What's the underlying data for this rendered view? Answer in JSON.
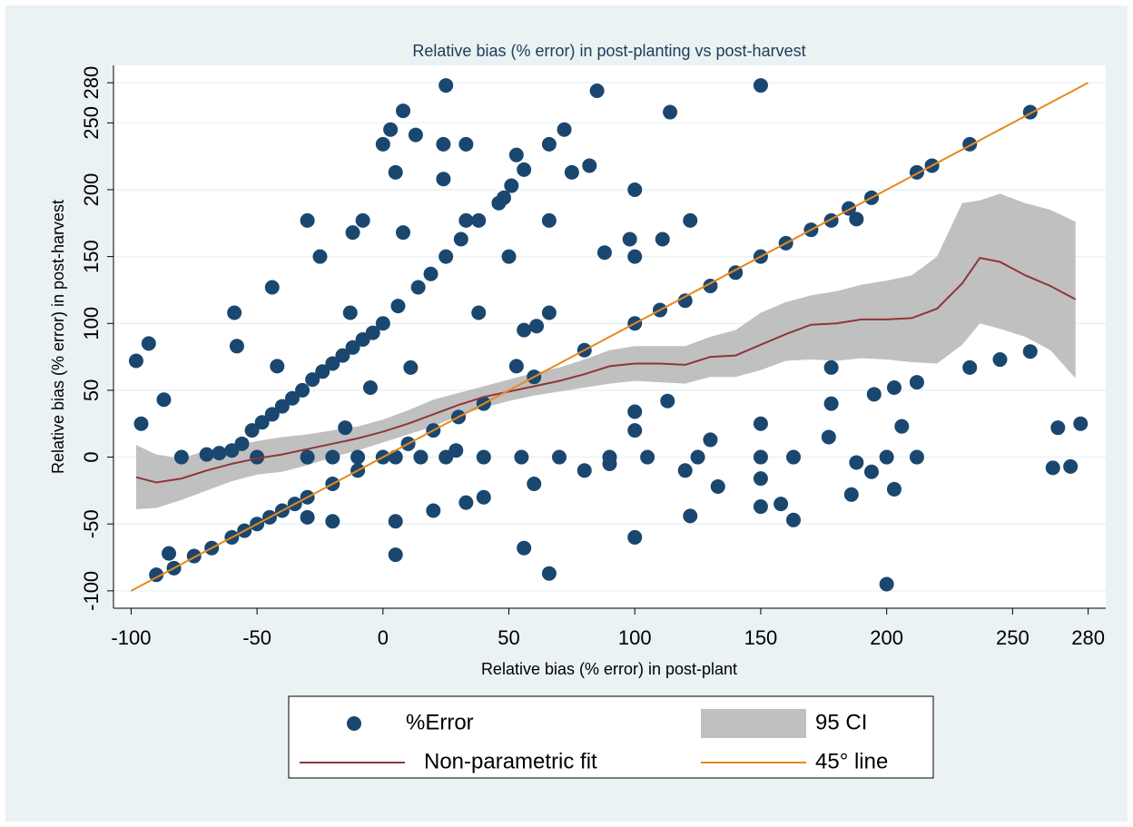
{
  "chart_data": {
    "type": "scatter",
    "title": "Relative bias (% error) in post-planting vs post-harvest",
    "x_label": "Relative bias (% error) in post-plant",
    "y_label": "Relative bias (% error) in post-harvest",
    "xlim": [
      -107,
      287
    ],
    "ylim": [
      -113,
      293
    ],
    "xticks": [
      -100,
      -50,
      0,
      50,
      100,
      150,
      200,
      250,
      280
    ],
    "yticks": [
      -100,
      -50,
      0,
      50,
      100,
      150,
      200,
      250,
      280
    ],
    "grid": true,
    "legend": "bottom",
    "series": [
      {
        "name": "%Error",
        "kind": "scatter",
        "color": "#1a476f",
        "x": [
          25,
          85,
          150,
          8,
          114,
          257,
          3,
          13,
          72,
          0,
          24,
          33,
          66,
          233,
          5,
          24,
          56,
          75,
          82,
          53,
          100,
          51,
          194,
          48,
          46,
          -30,
          -8,
          33,
          38,
          66,
          122,
          178,
          188,
          -12,
          8,
          88,
          98,
          111,
          31,
          -25,
          25,
          50,
          100,
          150,
          19,
          14,
          -44,
          -59,
          -13,
          66,
          38,
          6,
          0,
          -4,
          -8,
          -12,
          -16,
          -20,
          -24,
          -28,
          -32,
          -36,
          -40,
          -44,
          -48,
          -52,
          -56,
          -60,
          -65,
          -70,
          -98,
          -93,
          -96,
          -87,
          -85,
          -90,
          -83,
          -75,
          -68,
          -60,
          -55,
          -50,
          -45,
          -40,
          -35,
          -30,
          -20,
          -10,
          0,
          10,
          20,
          30,
          40,
          60,
          80,
          100,
          110,
          120,
          130,
          140,
          160,
          170,
          185,
          212,
          218,
          -80,
          -50,
          -30,
          -20,
          -10,
          5,
          15,
          25,
          40,
          55,
          70,
          90,
          105,
          125,
          150,
          163,
          200,
          212,
          -58,
          -42,
          -30,
          -20,
          5,
          5,
          56,
          66,
          100,
          122,
          163,
          200,
          203,
          186,
          158,
          133,
          100,
          100,
          113,
          130,
          150,
          178,
          178,
          195,
          203,
          206,
          212,
          233,
          245,
          257,
          266,
          273,
          268,
          277,
          150,
          150,
          188,
          194,
          177,
          53,
          56,
          61,
          29,
          11,
          -5,
          -15,
          20,
          33,
          40,
          60,
          80,
          90,
          120
        ],
        "values": [
          278,
          274,
          278,
          259,
          258,
          258,
          245,
          241,
          245,
          234,
          234,
          234,
          234,
          234,
          213,
          208,
          215,
          213,
          218,
          226,
          200,
          203,
          194,
          194,
          190,
          177,
          177,
          177,
          177,
          177,
          177,
          177,
          178,
          168,
          168,
          153,
          163,
          163,
          163,
          150,
          150,
          150,
          150,
          150,
          137,
          127,
          127,
          108,
          108,
          108,
          108,
          113,
          100,
          93,
          88,
          82,
          76,
          70,
          64,
          58,
          50,
          44,
          38,
          32,
          26,
          20,
          10,
          5,
          3,
          2,
          72,
          85,
          25,
          43,
          -72,
          -88,
          -83,
          -74,
          -68,
          -60,
          -55,
          -50,
          -45,
          -40,
          -35,
          -30,
          -20,
          -10,
          0,
          10,
          20,
          30,
          40,
          60,
          80,
          100,
          110,
          117,
          128,
          138,
          160,
          170,
          186,
          213,
          218,
          0,
          0,
          0,
          0,
          0,
          0,
          0,
          0,
          0,
          0,
          0,
          0,
          0,
          0,
          0,
          0,
          0,
          0,
          83,
          68,
          -45,
          -48,
          -48,
          -73,
          -68,
          -87,
          -60,
          -44,
          -47,
          -95,
          -24,
          -28,
          -35,
          -22,
          20,
          34,
          42,
          13,
          25,
          40,
          67,
          47,
          52,
          23,
          56,
          67,
          73,
          79,
          -8,
          -7,
          22,
          25,
          -37,
          -16,
          -4,
          -11,
          15,
          68,
          95,
          98,
          5,
          67,
          52,
          22,
          -40,
          -34,
          -30,
          -20,
          -10,
          -5,
          -10
        ]
      },
      {
        "name": "95 CI",
        "kind": "band",
        "color": "#c0c0c0",
        "x": [
          -98,
          -90,
          -80,
          -70,
          -60,
          -50,
          -40,
          -30,
          -20,
          -10,
          0,
          10,
          20,
          30,
          40,
          50,
          60,
          70,
          80,
          90,
          100,
          110,
          120,
          130,
          140,
          150,
          160,
          170,
          180,
          190,
          200,
          210,
          220,
          230,
          237,
          245,
          255,
          265,
          275
        ],
        "upper": [
          9,
          2,
          -1,
          5,
          8,
          12,
          15,
          17,
          20,
          23,
          28,
          35,
          43,
          48,
          53,
          58,
          63,
          67,
          73,
          80,
          83,
          83,
          83,
          90,
          95,
          108,
          116,
          121,
          124,
          129,
          132,
          136,
          150,
          190,
          192,
          197,
          190,
          185,
          176
        ],
        "lower": [
          -39,
          -38,
          -32,
          -25,
          -18,
          -13,
          -11,
          -6,
          0,
          5,
          11,
          17,
          23,
          31,
          37,
          42,
          46,
          49,
          52,
          55,
          57,
          56,
          55,
          60,
          60,
          65,
          72,
          73,
          72,
          74,
          73,
          71,
          70,
          84,
          100,
          96,
          90,
          80,
          59
        ]
      },
      {
        "name": "Non-parametric fit",
        "kind": "line",
        "color": "#90353b",
        "x": [
          -98,
          -90,
          -80,
          -70,
          -60,
          -50,
          -40,
          -30,
          -20,
          -10,
          0,
          10,
          20,
          30,
          40,
          50,
          60,
          70,
          80,
          90,
          100,
          110,
          120,
          130,
          140,
          150,
          160,
          170,
          180,
          190,
          200,
          210,
          220,
          230,
          237,
          245,
          255,
          265,
          275
        ],
        "values": [
          -15,
          -19,
          -16,
          -10,
          -5,
          -1,
          2,
          6,
          10,
          14,
          19,
          25,
          32,
          39,
          45,
          49,
          53,
          57,
          62,
          68,
          70,
          70,
          69,
          75,
          76,
          84,
          92,
          99,
          100,
          103,
          103,
          104,
          111,
          130,
          149,
          146,
          136,
          128,
          118
        ]
      },
      {
        "name": "45° line",
        "kind": "line",
        "color": "#e8891d",
        "x": [
          -100,
          280
        ],
        "values": [
          -100,
          280
        ]
      }
    ]
  }
}
